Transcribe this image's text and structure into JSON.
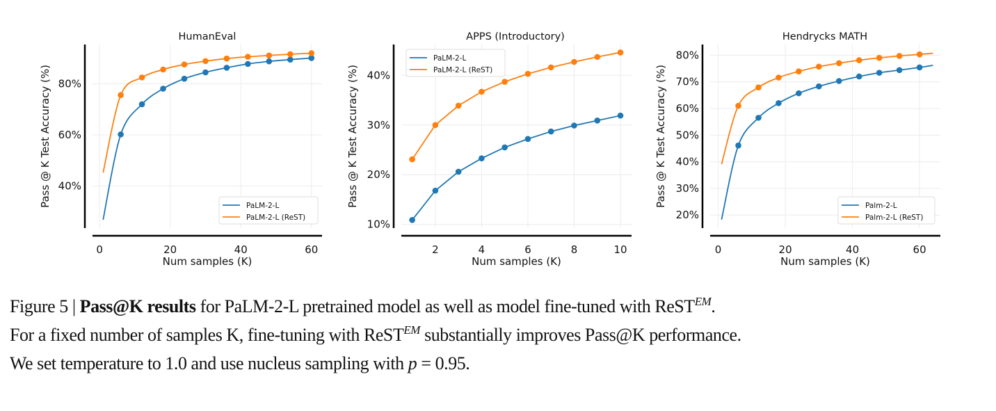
{
  "chart_data": [
    {
      "type": "line",
      "title": "HumanEval",
      "xlabel": "Num samples (K)",
      "ylabel": "Pass @ K Test Accuracy (%)",
      "xlim": [
        -2,
        63
      ],
      "ylim": [
        23.5,
        95.4
      ],
      "xticks": [
        0,
        20,
        40,
        60
      ],
      "xtick_labels": [
        "0",
        "20",
        "40",
        "60"
      ],
      "yticks": [
        40,
        60,
        80
      ],
      "ytick_labels": [
        "40%",
        "60%",
        "80%"
      ],
      "grid": true,
      "legend_position": "bottom-right",
      "smooth": true,
      "series": [
        {
          "name": "PaLM-2-L",
          "color": "#1f77b4",
          "x": [
            1,
            6,
            12,
            18,
            24,
            30,
            36,
            42,
            48,
            54,
            60
          ],
          "y": [
            26.8,
            60.2,
            72.0,
            78.1,
            82.0,
            84.5,
            86.3,
            87.8,
            88.8,
            89.5,
            90.1
          ],
          "unmarked_x": [
            1
          ]
        },
        {
          "name": "PaLM-2-L (ReST)",
          "color": "#ff7f0e",
          "x": [
            1,
            6,
            12,
            18,
            24,
            30,
            36,
            42,
            48,
            54,
            60
          ],
          "y": [
            45.2,
            75.6,
            82.5,
            85.6,
            87.6,
            88.9,
            89.9,
            90.6,
            91.1,
            91.6,
            92.0
          ],
          "unmarked_x": [
            1
          ]
        }
      ]
    },
    {
      "type": "line",
      "title": "APPS (Introductory)",
      "xlabel": "Num samples (K)",
      "ylabel": "Pass @ K Test Accuracy (%)",
      "xlim": [
        0.53,
        10.48
      ],
      "ylim": [
        9.26,
        46.2
      ],
      "xticks": [
        2,
        4,
        6,
        8,
        10
      ],
      "xtick_labels": [
        "2",
        "4",
        "6",
        "8",
        "10"
      ],
      "yticks": [
        10,
        20,
        30,
        40
      ],
      "ytick_labels": [
        "10%",
        "20%",
        "30%",
        "40%"
      ],
      "grid": true,
      "legend_position": "top-left",
      "smooth": false,
      "series": [
        {
          "name": "PaLM-2-L",
          "color": "#1f77b4",
          "x": [
            1,
            2,
            3,
            4,
            5,
            6,
            7,
            8,
            9,
            10
          ],
          "y": [
            10.9,
            16.8,
            20.6,
            23.3,
            25.5,
            27.2,
            28.7,
            29.9,
            30.9,
            31.9
          ],
          "unmarked_x": []
        },
        {
          "name": "PaLM-2-L (ReST)",
          "color": "#ff7f0e",
          "x": [
            1,
            2,
            3,
            4,
            5,
            6,
            7,
            8,
            9,
            10
          ],
          "y": [
            23.1,
            30.0,
            33.9,
            36.7,
            38.7,
            40.3,
            41.6,
            42.7,
            43.7,
            44.6
          ],
          "unmarked_x": []
        }
      ]
    },
    {
      "type": "line",
      "title": "Hendrycks MATH",
      "xlabel": "Num samples (K)",
      "ylabel": "Pass @ K Test Accuracy (%)",
      "xlim": [
        -2.4,
        66.2
      ],
      "ylim": [
        15.1,
        84.0
      ],
      "xticks": [
        0,
        20,
        40,
        60
      ],
      "xtick_labels": [
        "0",
        "20",
        "40",
        "60"
      ],
      "yticks": [
        20,
        30,
        40,
        50,
        60,
        70,
        80
      ],
      "ytick_labels": [
        "20%",
        "30%",
        "40%",
        "50%",
        "60%",
        "70%",
        "80%"
      ],
      "grid": true,
      "legend_position": "bottom-right",
      "smooth": true,
      "series": [
        {
          "name": "Palm-2-L",
          "color": "#1f77b4",
          "x": [
            1,
            6,
            12,
            18,
            24,
            30,
            36,
            42,
            48,
            54,
            60,
            64
          ],
          "y": [
            18.3,
            46.1,
            56.5,
            62.0,
            65.7,
            68.3,
            70.3,
            72.0,
            73.4,
            74.4,
            75.4,
            76.2
          ],
          "unmarked_x": [
            1,
            64
          ]
        },
        {
          "name": "Palm-2-L (ReST)",
          "color": "#ff7f0e",
          "x": [
            1,
            6,
            12,
            18,
            24,
            30,
            36,
            42,
            48,
            54,
            60,
            64
          ],
          "y": [
            39.1,
            61.0,
            67.9,
            71.6,
            73.9,
            75.7,
            77.0,
            78.1,
            79.0,
            79.7,
            80.3,
            80.7
          ],
          "unmarked_x": [
            1,
            64
          ]
        }
      ]
    }
  ],
  "caption": {
    "label": "Figure 5 | ",
    "bold": "Pass@K results",
    "line1_rest": " for PaLM-2-L pretrained model as well as model fine-tuned with ReST",
    "sup": "EM",
    "line1_end": ".",
    "line2_a": "For a fixed number of samples K, fine-tuning with ReST",
    "line2_b": " substantially improves Pass@K performance.",
    "line3_a": "We set temperature to 1.0 and use nucleus sampling with ",
    "line3_p": "p",
    "line3_b": " = 0.95."
  }
}
